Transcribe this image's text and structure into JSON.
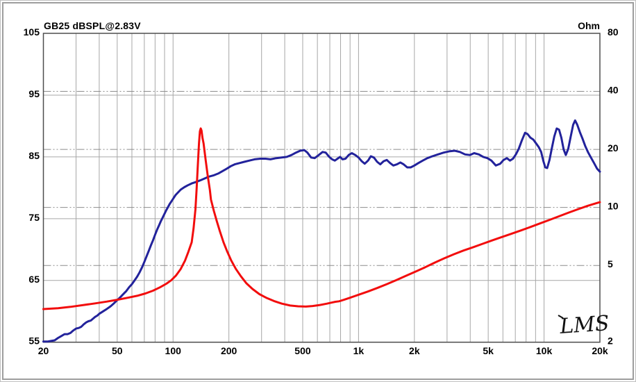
{
  "chart": {
    "title": "GB25 dBSPL@2.83V",
    "right_axis_unit": "Ohm",
    "logo": "LMS",
    "colors": {
      "spl_curve": "#22229b",
      "impedance_curve": "#f20d0d",
      "grid_solid": "#a6a6a6",
      "grid_dashdot": "#8c8c8c",
      "plot_border": "#4d4d4d",
      "text": "#000000",
      "background": "#ffffff"
    }
  },
  "chart_data": {
    "type": "line",
    "title": "GB25 dBSPL@2.83V",
    "legend": "none",
    "grid": "on",
    "x_axis": {
      "scale": "log",
      "unit": "Hz",
      "min": 20,
      "max": 20000,
      "ticks": [
        [
          20,
          "20"
        ],
        [
          50,
          "50"
        ],
        [
          100,
          "100"
        ],
        [
          200,
          "200"
        ],
        [
          500,
          "500"
        ],
        [
          1000,
          "1k"
        ],
        [
          2000,
          "2k"
        ],
        [
          5000,
          "5k"
        ],
        [
          10000,
          "10k"
        ],
        [
          20000,
          "20k"
        ]
      ],
      "minor_gridlines": [
        30,
        40,
        50,
        60,
        70,
        80,
        90,
        100,
        200,
        300,
        400,
        500,
        600,
        700,
        800,
        900,
        1000,
        2000,
        3000,
        4000,
        5000,
        6000,
        7000,
        8000,
        9000,
        10000
      ]
    },
    "y_left_axis": {
      "label": "dBSPL@2.83V",
      "scale": "linear",
      "min": 55,
      "max": 105,
      "ticks": [
        105,
        95,
        85,
        75,
        65,
        55
      ],
      "gridlines": [
        95,
        85,
        75,
        65
      ],
      "gridline_style": "solid"
    },
    "y_right_axis": {
      "label": "Ohm",
      "scale": "log",
      "min": 2,
      "max": 80,
      "ticks": [
        80,
        40,
        20,
        10,
        5,
        2
      ],
      "gridlines": [
        40,
        20,
        10,
        5
      ],
      "gridline_style": "dash-dot"
    },
    "series": [
      {
        "name": "SPL response (dB, left axis)",
        "axis": "left",
        "color": "#22229b",
        "points": [
          [
            20,
            55.1
          ],
          [
            21,
            55.1
          ],
          [
            22,
            55.2
          ],
          [
            23,
            55.3
          ],
          [
            24,
            55.7
          ],
          [
            25,
            56.0
          ],
          [
            26,
            56.3
          ],
          [
            27,
            56.3
          ],
          [
            28,
            56.5
          ],
          [
            29,
            56.9
          ],
          [
            30,
            57.2
          ],
          [
            31,
            57.3
          ],
          [
            32,
            57.5
          ],
          [
            33,
            57.9
          ],
          [
            34,
            58.2
          ],
          [
            35,
            58.4
          ],
          [
            36,
            58.5
          ],
          [
            37,
            58.8
          ],
          [
            38,
            59.1
          ],
          [
            39,
            59.3
          ],
          [
            40,
            59.6
          ],
          [
            42,
            60.0
          ],
          [
            44,
            60.4
          ],
          [
            46,
            60.8
          ],
          [
            48,
            61.3
          ],
          [
            50,
            61.8
          ],
          [
            52,
            62.3
          ],
          [
            54,
            62.8
          ],
          [
            56,
            63.3
          ],
          [
            58,
            63.9
          ],
          [
            60,
            64.4
          ],
          [
            62,
            65.0
          ],
          [
            64,
            65.6
          ],
          [
            66,
            66.3
          ],
          [
            68,
            67.1
          ],
          [
            70,
            68.0
          ],
          [
            72,
            68.9
          ],
          [
            74,
            69.8
          ],
          [
            76,
            70.7
          ],
          [
            78,
            71.5
          ],
          [
            80,
            72.4
          ],
          [
            82,
            73.2
          ],
          [
            84,
            73.9
          ],
          [
            86,
            74.6
          ],
          [
            88,
            75.2
          ],
          [
            90,
            75.8
          ],
          [
            92,
            76.4
          ],
          [
            94,
            76.9
          ],
          [
            96,
            77.4
          ],
          [
            98,
            77.8
          ],
          [
            100,
            78.2
          ],
          [
            103,
            78.8
          ],
          [
            106,
            79.2
          ],
          [
            110,
            79.7
          ],
          [
            115,
            80.1
          ],
          [
            120,
            80.4
          ],
          [
            126,
            80.7
          ],
          [
            132,
            80.9
          ],
          [
            140,
            81.2
          ],
          [
            148,
            81.5
          ],
          [
            156,
            81.8
          ],
          [
            165,
            82.0
          ],
          [
            175,
            82.3
          ],
          [
            185,
            82.7
          ],
          [
            195,
            83.1
          ],
          [
            205,
            83.5
          ],
          [
            215,
            83.8
          ],
          [
            228,
            84.0
          ],
          [
            242,
            84.2
          ],
          [
            258,
            84.4
          ],
          [
            275,
            84.6
          ],
          [
            295,
            84.7
          ],
          [
            315,
            84.7
          ],
          [
            335,
            84.6
          ],
          [
            360,
            84.8
          ],
          [
            385,
            84.9
          ],
          [
            410,
            85.0
          ],
          [
            435,
            85.3
          ],
          [
            460,
            85.7
          ],
          [
            485,
            86.0
          ],
          [
            510,
            86.1
          ],
          [
            530,
            85.7
          ],
          [
            555,
            84.9
          ],
          [
            580,
            84.8
          ],
          [
            610,
            85.3
          ],
          [
            640,
            85.8
          ],
          [
            665,
            85.7
          ],
          [
            695,
            85.0
          ],
          [
            720,
            84.6
          ],
          [
            745,
            84.4
          ],
          [
            770,
            84.7
          ],
          [
            795,
            85.0
          ],
          [
            820,
            84.6
          ],
          [
            850,
            84.7
          ],
          [
            885,
            85.3
          ],
          [
            920,
            85.6
          ],
          [
            960,
            85.3
          ],
          [
            1000,
            84.9
          ],
          [
            1040,
            84.3
          ],
          [
            1080,
            83.9
          ],
          [
            1125,
            84.4
          ],
          [
            1165,
            85.1
          ],
          [
            1210,
            84.9
          ],
          [
            1260,
            84.2
          ],
          [
            1310,
            83.8
          ],
          [
            1365,
            84.3
          ],
          [
            1420,
            84.5
          ],
          [
            1480,
            84.0
          ],
          [
            1540,
            83.6
          ],
          [
            1610,
            83.8
          ],
          [
            1680,
            84.1
          ],
          [
            1750,
            83.8
          ],
          [
            1830,
            83.3
          ],
          [
            1910,
            83.3
          ],
          [
            2000,
            83.6
          ],
          [
            2100,
            84.0
          ],
          [
            2220,
            84.4
          ],
          [
            2350,
            84.8
          ],
          [
            2500,
            85.1
          ],
          [
            2680,
            85.4
          ],
          [
            2880,
            85.7
          ],
          [
            3080,
            85.9
          ],
          [
            3300,
            86.0
          ],
          [
            3520,
            85.8
          ],
          [
            3750,
            85.4
          ],
          [
            3980,
            85.3
          ],
          [
            4200,
            85.6
          ],
          [
            4450,
            85.4
          ],
          [
            4700,
            85.0
          ],
          [
            4950,
            84.8
          ],
          [
            5200,
            84.4
          ],
          [
            5500,
            83.6
          ],
          [
            5800,
            83.9
          ],
          [
            6050,
            84.5
          ],
          [
            6300,
            84.8
          ],
          [
            6550,
            84.4
          ],
          [
            6800,
            84.7
          ],
          [
            7050,
            85.4
          ],
          [
            7300,
            86.3
          ],
          [
            7600,
            87.7
          ],
          [
            7900,
            88.9
          ],
          [
            8150,
            88.7
          ],
          [
            8450,
            88.1
          ],
          [
            8750,
            87.8
          ],
          [
            9050,
            87.2
          ],
          [
            9350,
            86.6
          ],
          [
            9650,
            85.8
          ],
          [
            9900,
            84.4
          ],
          [
            10150,
            83.3
          ],
          [
            10400,
            83.2
          ],
          [
            10700,
            84.5
          ],
          [
            11000,
            86.3
          ],
          [
            11350,
            88.3
          ],
          [
            11700,
            89.6
          ],
          [
            12050,
            89.4
          ],
          [
            12400,
            88.1
          ],
          [
            12750,
            86.2
          ],
          [
            13100,
            85.3
          ],
          [
            13500,
            86.3
          ],
          [
            13900,
            88.2
          ],
          [
            14350,
            90.2
          ],
          [
            14700,
            90.9
          ],
          [
            15100,
            90.2
          ],
          [
            15600,
            89.0
          ],
          [
            16100,
            88.0
          ],
          [
            16700,
            86.7
          ],
          [
            17300,
            85.7
          ],
          [
            17900,
            84.9
          ],
          [
            18600,
            84.0
          ],
          [
            19300,
            83.1
          ],
          [
            20000,
            82.6
          ]
        ]
      },
      {
        "name": "Impedance (Ohm, right axis)",
        "axis": "right",
        "color": "#f20d0d",
        "points": [
          [
            20,
            2.97
          ],
          [
            24,
            3.0
          ],
          [
            28,
            3.05
          ],
          [
            33,
            3.12
          ],
          [
            38,
            3.18
          ],
          [
            44,
            3.25
          ],
          [
            50,
            3.32
          ],
          [
            57,
            3.4
          ],
          [
            64,
            3.48
          ],
          [
            71,
            3.58
          ],
          [
            78,
            3.7
          ],
          [
            85,
            3.85
          ],
          [
            92,
            4.02
          ],
          [
            98,
            4.2
          ],
          [
            104,
            4.45
          ],
          [
            110,
            4.8
          ],
          [
            116,
            5.3
          ],
          [
            121,
            5.9
          ],
          [
            126,
            6.6
          ],
          [
            129,
            7.8
          ],
          [
            132,
            9.8
          ],
          [
            134,
            12.5
          ],
          [
            136,
            16.5
          ],
          [
            138,
            21.5
          ],
          [
            139.5,
            24.8
          ],
          [
            141,
            25.7
          ],
          [
            142.5,
            25.0
          ],
          [
            144,
            23.0
          ],
          [
            146,
            21.5
          ],
          [
            150,
            17.5
          ],
          [
            154,
            14.5
          ],
          [
            158,
            12.3
          ],
          [
            160,
            11.0
          ],
          [
            166,
            9.6
          ],
          [
            172,
            8.5
          ],
          [
            179,
            7.5
          ],
          [
            187,
            6.6
          ],
          [
            196,
            5.9
          ],
          [
            206,
            5.3
          ],
          [
            218,
            4.8
          ],
          [
            232,
            4.4
          ],
          [
            248,
            4.05
          ],
          [
            268,
            3.78
          ],
          [
            292,
            3.55
          ],
          [
            318,
            3.4
          ],
          [
            350,
            3.27
          ],
          [
            386,
            3.17
          ],
          [
            428,
            3.1
          ],
          [
            472,
            3.07
          ],
          [
            520,
            3.06
          ],
          [
            565,
            3.08
          ],
          [
            620,
            3.12
          ],
          [
            675,
            3.17
          ],
          [
            715,
            3.21
          ],
          [
            750,
            3.24
          ],
          [
            785,
            3.26
          ],
          [
            835,
            3.32
          ],
          [
            905,
            3.41
          ],
          [
            1005,
            3.53
          ],
          [
            1120,
            3.66
          ],
          [
            1260,
            3.82
          ],
          [
            1420,
            4.0
          ],
          [
            1600,
            4.2
          ],
          [
            1800,
            4.42
          ],
          [
            2030,
            4.65
          ],
          [
            2290,
            4.9
          ],
          [
            2580,
            5.18
          ],
          [
            2900,
            5.45
          ],
          [
            3270,
            5.72
          ],
          [
            3680,
            5.98
          ],
          [
            4150,
            6.22
          ],
          [
            4670,
            6.48
          ],
          [
            5260,
            6.75
          ],
          [
            5920,
            7.02
          ],
          [
            6670,
            7.3
          ],
          [
            7500,
            7.6
          ],
          [
            8450,
            7.92
          ],
          [
            9510,
            8.26
          ],
          [
            10700,
            8.62
          ],
          [
            12050,
            9.0
          ],
          [
            13570,
            9.4
          ],
          [
            15280,
            9.8
          ],
          [
            17200,
            10.2
          ],
          [
            19000,
            10.5
          ],
          [
            20000,
            10.65
          ]
        ]
      }
    ]
  }
}
